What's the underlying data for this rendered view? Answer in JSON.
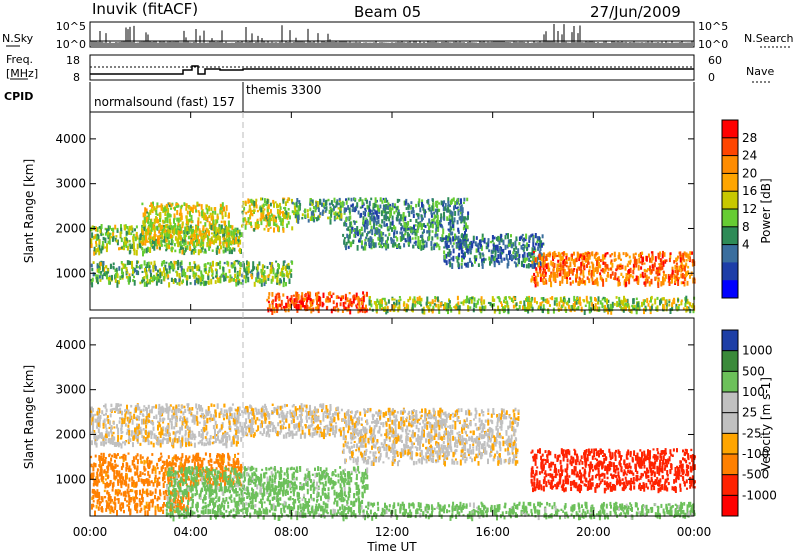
{
  "header": {
    "station": "Inuvik (fitACF)",
    "beam": "Beam 05",
    "date": "27/Jun/2009"
  },
  "summary_panels": {
    "nsky_label": "N.Sky",
    "nsky_ticks": [
      "10^5",
      "10^0"
    ],
    "nsearch_label": "N.Search",
    "nsearch_ticks": [
      "10^5",
      "10^0"
    ],
    "freq_label_1": "Freq.",
    "freq_label_2": "[MHz]",
    "freq_ticks": [
      "18",
      "8"
    ],
    "nave_label": "Nave",
    "nave_ticks": [
      "60",
      "0"
    ],
    "cpid_label": "CPID",
    "cpid_modes": [
      {
        "name": "normalsound (fast) 157",
        "start_hour": 0
      },
      {
        "name": "themis 3300",
        "start_hour": 6
      }
    ]
  },
  "colorbars": {
    "power": {
      "label": "Power [dB]",
      "ticks": [
        "28",
        "24",
        "20",
        "16",
        "12",
        "8",
        "4"
      ],
      "colors": [
        "#ff0000",
        "#ff4500",
        "#ff8c00",
        "#ffa500",
        "#c8c800",
        "#66cc33",
        "#2e8b57",
        "#3a6e9e",
        "#1e3ea8",
        "#0000ff"
      ]
    },
    "velocity": {
      "label": "Velocity [m s-1]",
      "ticks": [
        "1000",
        "500",
        "100",
        "25",
        "-25",
        "-100",
        "-500",
        "-1000"
      ],
      "colors": [
        "#1e3fa6",
        "#3a8a3a",
        "#6cc05a",
        "#c0c0c0",
        "#c0c0c0",
        "#ffa500",
        "#ff8000",
        "#ff2200",
        "#ff0000"
      ]
    }
  },
  "chart_data": [
    {
      "type": "heatmap",
      "name": "power",
      "xlabel": "Time UT",
      "ylabel": "Slant Range [km]",
      "xlim": [
        0,
        24
      ],
      "ylim": [
        180,
        4600
      ],
      "xticks": [
        "00:00",
        "04:00",
        "08:00",
        "12:00",
        "16:00",
        "20:00",
        "00:00"
      ],
      "yticks": [
        1000,
        2000,
        3000,
        4000
      ],
      "value_label": "Power [dB]",
      "echo_regions": [
        {
          "t": [
            0,
            6
          ],
          "r": [
            1500,
            2100
          ],
          "power_db": 15
        },
        {
          "t": [
            2,
            5.5
          ],
          "r": [
            1700,
            2600
          ],
          "power_db": 18
        },
        {
          "t": [
            6,
            8
          ],
          "r": [
            2000,
            2700
          ],
          "power_db": 17
        },
        {
          "t": [
            8,
            10
          ],
          "r": [
            2200,
            2700
          ],
          "power_db": 12
        },
        {
          "t": [
            10,
            15
          ],
          "r": [
            1600,
            2700
          ],
          "power_db": 10
        },
        {
          "t": [
            14,
            18
          ],
          "r": [
            1200,
            1900
          ],
          "power_db": 8
        },
        {
          "t": [
            0,
            8
          ],
          "r": [
            800,
            1300
          ],
          "power_db": 14
        },
        {
          "t": [
            7,
            11
          ],
          "r": [
            190,
            600
          ],
          "power_db": 29
        },
        {
          "t": [
            17.5,
            24
          ],
          "r": [
            800,
            1500
          ],
          "power_db": 26
        },
        {
          "t": [
            11,
            24
          ],
          "r": [
            190,
            500
          ],
          "power_db": 16
        }
      ]
    },
    {
      "type": "heatmap",
      "name": "velocity",
      "xlabel": "Time UT",
      "ylabel": "Slant Range [km]",
      "xlim": [
        0,
        24
      ],
      "ylim": [
        180,
        4600
      ],
      "xticks": [
        "00:00",
        "04:00",
        "08:00",
        "12:00",
        "16:00",
        "20:00",
        "00:00"
      ],
      "yticks": [
        1000,
        2000,
        3000,
        4000
      ],
      "value_label": "Velocity [m s-1]",
      "echo_regions": [
        {
          "t": [
            0,
            6
          ],
          "r": [
            1800,
            2700
          ],
          "velocity": 0
        },
        {
          "t": [
            6,
            10
          ],
          "r": [
            2000,
            2700
          ],
          "velocity": 0
        },
        {
          "t": [
            10,
            17
          ],
          "r": [
            1400,
            2600
          ],
          "velocity": 0
        },
        {
          "t": [
            0,
            6
          ],
          "r": [
            900,
            1600
          ],
          "velocity": -150
        },
        {
          "t": [
            0,
            4
          ],
          "r": [
            300,
            800
          ],
          "velocity": -150
        },
        {
          "t": [
            3,
            11
          ],
          "r": [
            190,
            1300
          ],
          "velocity": 150
        },
        {
          "t": [
            11,
            24
          ],
          "r": [
            190,
            500
          ],
          "velocity": 150
        },
        {
          "t": [
            17.5,
            24
          ],
          "r": [
            800,
            1700
          ],
          "velocity": -600
        }
      ]
    }
  ]
}
